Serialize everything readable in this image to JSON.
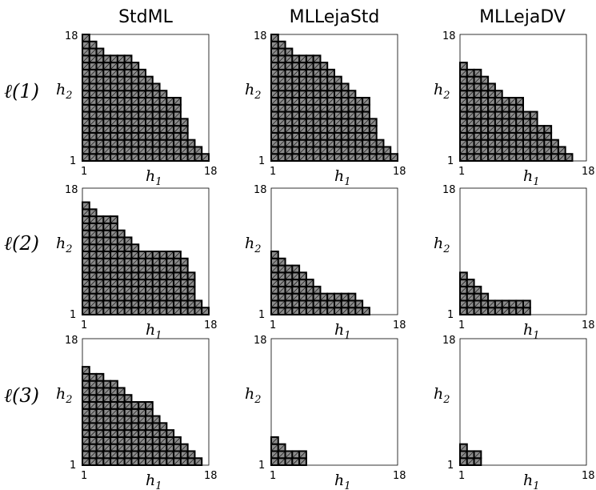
{
  "chart_data": {
    "type": "heatmap",
    "columns": [
      "StdML",
      "MLLejaStd",
      "MLLejaDV"
    ],
    "rows": [
      "ℓ(1)",
      "ℓ(2)",
      "ℓ(3)"
    ],
    "xlabel": "h",
    "xlabel_sub": "1",
    "ylabel": "h",
    "ylabel_sub": "2",
    "xlim": [
      1,
      18
    ],
    "ylim": [
      1,
      18
    ],
    "tick_labels": {
      "min": "1",
      "max": "18"
    },
    "note": "Each panel is an index set; for each h1 the column of filled cells runs from h2 = 1 up to the listed h2 max.",
    "panels": [
      {
        "row": 0,
        "col": 0,
        "h2_max_by_h1": [
          18,
          17,
          16,
          15,
          15,
          15,
          15,
          14,
          13,
          12,
          11,
          10,
          9,
          9,
          6,
          3,
          2,
          1
        ]
      },
      {
        "row": 0,
        "col": 1,
        "h2_max_by_h1": [
          18,
          17,
          16,
          15,
          15,
          15,
          15,
          14,
          13,
          12,
          11,
          10,
          9,
          9,
          6,
          3,
          2,
          1
        ]
      },
      {
        "row": 0,
        "col": 2,
        "h2_max_by_h1": [
          14,
          13,
          13,
          12,
          11,
          10,
          9,
          9,
          9,
          7,
          7,
          5,
          5,
          3,
          2,
          1
        ]
      },
      {
        "row": 1,
        "col": 0,
        "h2_max_by_h1": [
          16,
          15,
          14,
          14,
          14,
          12,
          11,
          10,
          9,
          9,
          9,
          9,
          9,
          9,
          8,
          6,
          2,
          1
        ]
      },
      {
        "row": 1,
        "col": 1,
        "h2_max_by_h1": [
          9,
          8,
          7,
          7,
          6,
          5,
          4,
          3,
          3,
          3,
          3,
          3,
          2,
          1
        ]
      },
      {
        "row": 1,
        "col": 2,
        "h2_max_by_h1": [
          6,
          5,
          4,
          3,
          2,
          2,
          2,
          2,
          2,
          2
        ]
      },
      {
        "row": 2,
        "col": 0,
        "h2_max_by_h1": [
          14,
          13,
          13,
          12,
          12,
          11,
          10,
          9,
          9,
          9,
          7,
          6,
          5,
          4,
          3,
          2,
          1
        ]
      },
      {
        "row": 2,
        "col": 1,
        "h2_max_by_h1": [
          4,
          3,
          2,
          2,
          2
        ]
      },
      {
        "row": 2,
        "col": 2,
        "h2_max_by_h1": [
          3,
          2,
          2
        ]
      }
    ]
  }
}
